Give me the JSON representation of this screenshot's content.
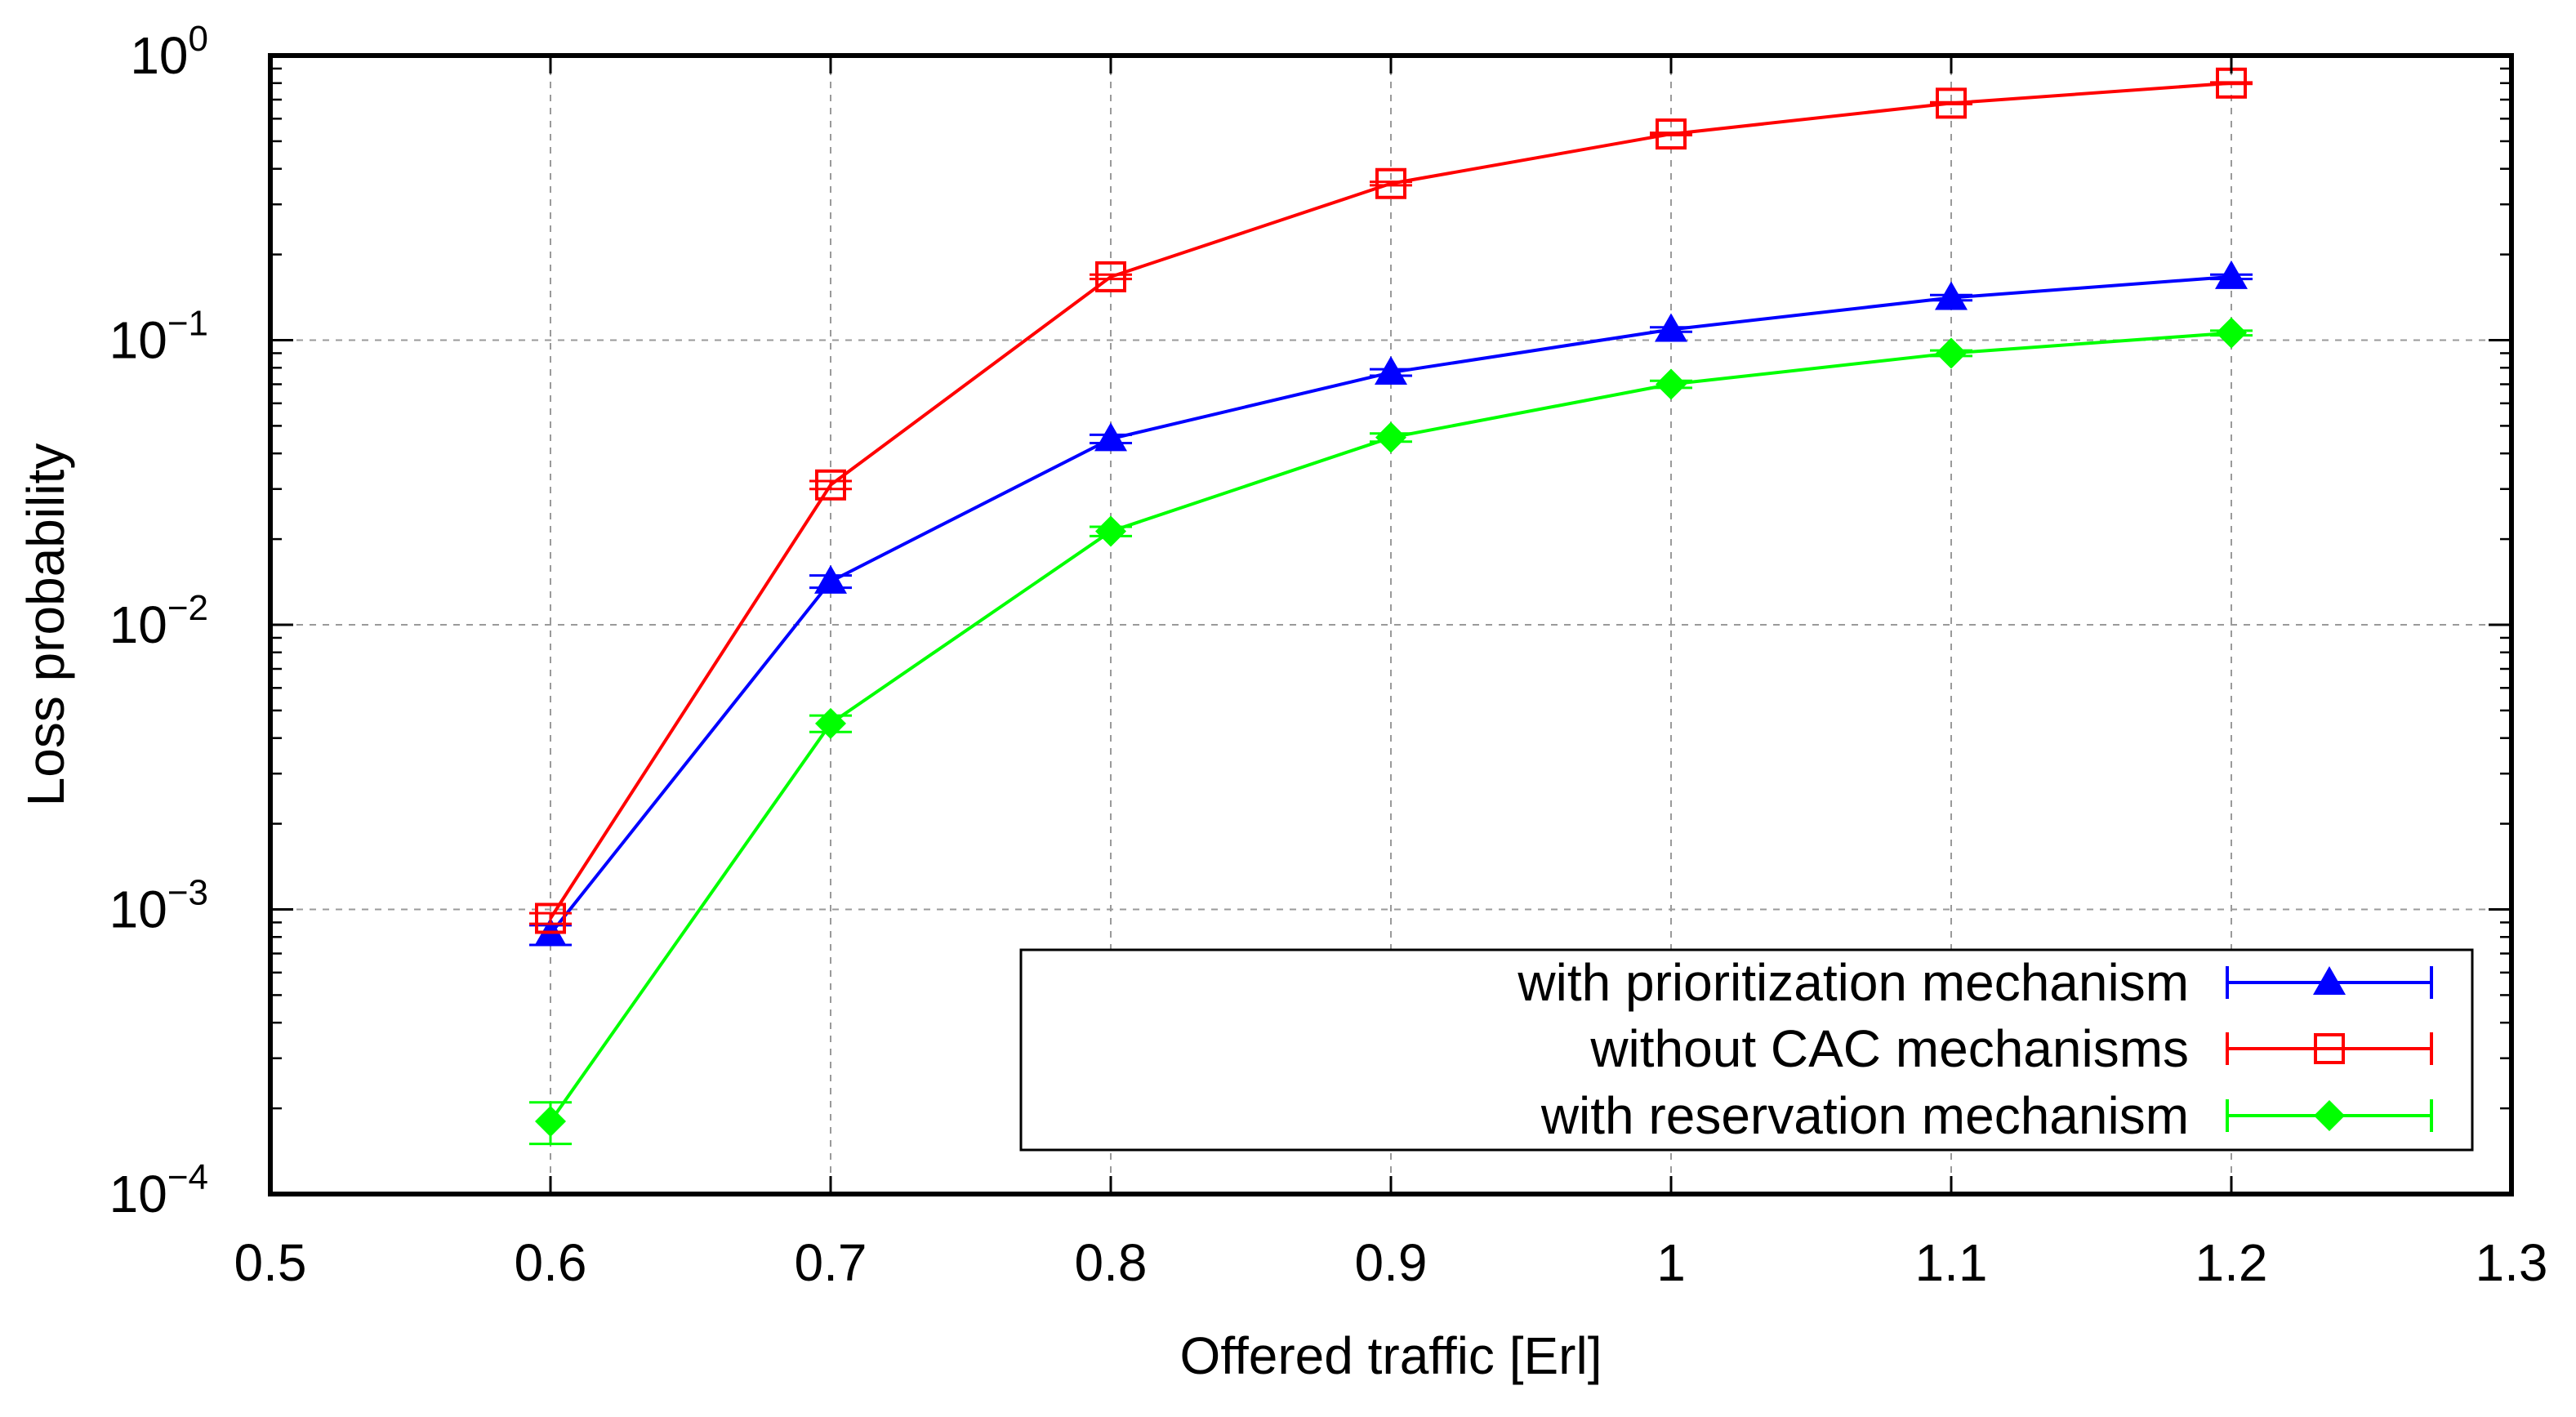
{
  "chart_data": {
    "type": "line",
    "title": "",
    "xlabel": "Offered traffic [Erl]",
    "ylabel": "Loss probability",
    "xscale": "linear",
    "yscale": "log",
    "xlim": [
      0.5,
      1.3
    ],
    "ylim": [
      0.0001,
      1
    ],
    "grid": true,
    "legend_position": "bottom-right",
    "x_ticks": [
      0.5,
      0.6,
      0.7,
      0.8,
      0.9,
      1.0,
      1.1,
      1.2,
      1.3
    ],
    "x_tick_labels": [
      "0.5",
      "0.6",
      "0.7",
      "0.8",
      "0.9",
      "1",
      "1.1",
      "1.2",
      "1.3"
    ],
    "y_ticks": [
      {
        "value": 0.0001,
        "base": "10",
        "exp": "−4"
      },
      {
        "value": 0.001,
        "base": "10",
        "exp": "−3"
      },
      {
        "value": 0.01,
        "base": "10",
        "exp": "−2"
      },
      {
        "value": 0.1,
        "base": "10",
        "exp": "−1"
      },
      {
        "value": 1,
        "base": "10",
        "exp": "0"
      }
    ],
    "x": [
      0.6,
      0.7,
      0.8,
      0.9,
      1.0,
      1.1,
      1.2
    ],
    "series": [
      {
        "name": "with prioritization mechanism",
        "color": "#0000ff",
        "marker": "filled-triangle",
        "values": [
          0.00082,
          0.0142,
          0.045,
          0.077,
          0.109,
          0.141,
          0.167
        ],
        "err_low": [
          0.00075,
          0.0135,
          0.0435,
          0.075,
          0.107,
          0.138,
          0.164
        ],
        "err_high": [
          0.00088,
          0.0149,
          0.0465,
          0.079,
          0.111,
          0.144,
          0.17
        ]
      },
      {
        "name": "without CAC mechanisms",
        "color": "#ff0000",
        "marker": "open-square",
        "values": [
          0.00093,
          0.031,
          0.167,
          0.355,
          0.53,
          0.68,
          0.8
        ],
        "err_low": [
          0.00089,
          0.03,
          0.164,
          0.35,
          0.525,
          0.675,
          0.795
        ],
        "err_high": [
          0.00097,
          0.032,
          0.17,
          0.36,
          0.535,
          0.685,
          0.805
        ]
      },
      {
        "name": "with reservation mechanism",
        "color": "#00ff00",
        "marker": "filled-diamond",
        "values": [
          0.00018,
          0.0045,
          0.0213,
          0.0455,
          0.07,
          0.09,
          0.106
        ],
        "err_low": [
          0.00015,
          0.0042,
          0.0205,
          0.044,
          0.068,
          0.088,
          0.104
        ],
        "err_high": [
          0.00021,
          0.0048,
          0.0221,
          0.047,
          0.072,
          0.092,
          0.108
        ]
      }
    ]
  }
}
